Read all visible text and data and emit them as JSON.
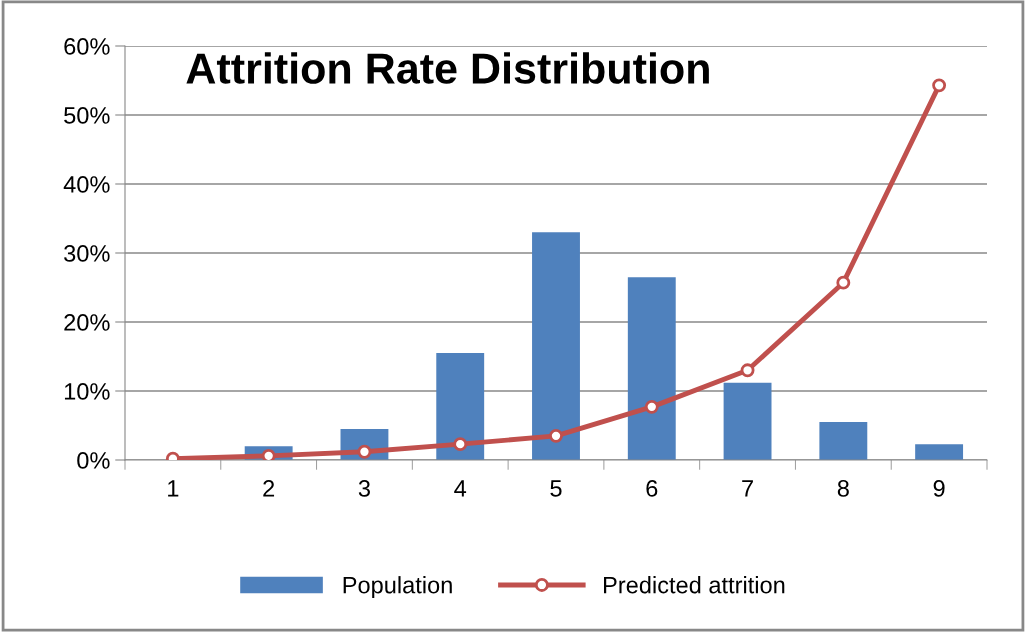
{
  "chart_data": {
    "type": "bar",
    "title": "Attrition Rate Distribution",
    "categories": [
      "1",
      "2",
      "3",
      "4",
      "5",
      "6",
      "7",
      "8",
      "9"
    ],
    "series": [
      {
        "name": "Population",
        "color": "#4f81bd",
        "values": [
          0,
          2.0,
          4.5,
          15.5,
          33.0,
          26.5,
          11.2,
          5.5,
          2.3
        ]
      },
      {
        "name": "Predicted attrition",
        "type": "line",
        "color": "#c0504d",
        "marker": "circle",
        "values": [
          0.2,
          0.6,
          1.2,
          2.3,
          3.5,
          7.7,
          13.0,
          25.7,
          54.3
        ]
      }
    ],
    "ylim": [
      0,
      60
    ],
    "yticks": [
      {
        "value": 0,
        "label": "0%"
      },
      {
        "value": 10,
        "label": "10%"
      },
      {
        "value": 20,
        "label": "20%"
      },
      {
        "value": 30,
        "label": "30%"
      },
      {
        "value": 40,
        "label": "40%"
      },
      {
        "value": 50,
        "label": "50%"
      },
      {
        "value": 60,
        "label": "60%"
      }
    ],
    "grid": "y",
    "legend": "bottom"
  }
}
